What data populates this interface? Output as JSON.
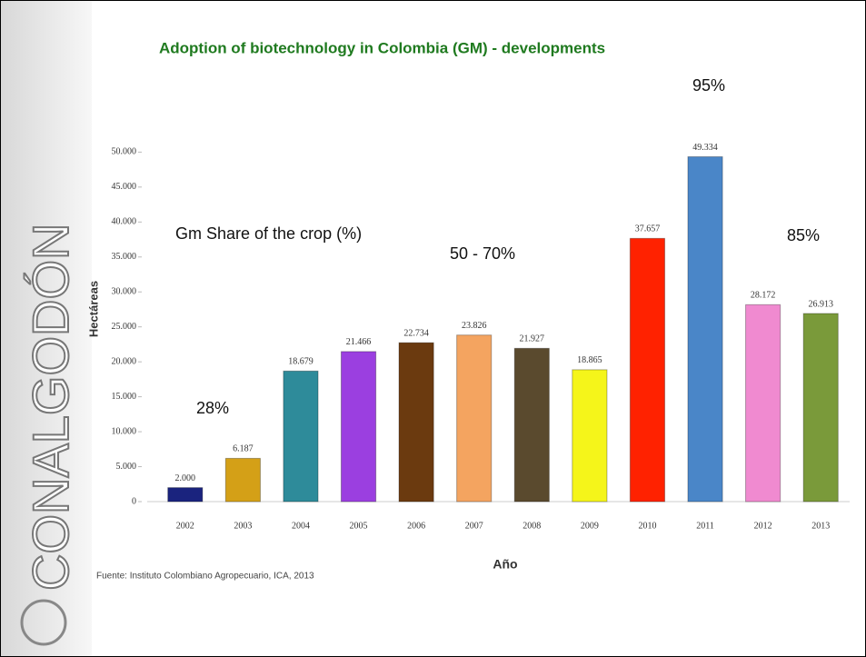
{
  "brand": "CONALGODÓN",
  "chart_data": {
    "type": "bar",
    "title": "Adoption of biotechnology in Colombia (GM) - developments",
    "y_label": "Hectáreas",
    "x_label": "Año",
    "source": "Fuente: Instituto Colombiano Agropecuario, ICA, 2013",
    "annotations": [
      "Gm Share of the crop (%)",
      "28%",
      "50 - 70%",
      "95%",
      "85%"
    ],
    "categories": [
      "2002",
      "2003",
      "2004",
      "2005",
      "2006",
      "2007",
      "2008",
      "2009",
      "2010",
      "2011",
      "2012",
      "2013"
    ],
    "values": [
      2000,
      6187,
      18679,
      21466,
      22734,
      23826,
      21927,
      18865,
      37657,
      49334,
      28172,
      26913
    ],
    "value_labels": [
      "2.000",
      "6.187",
      "18.679",
      "21.466",
      "22.734",
      "23.826",
      "21.927",
      "18.865",
      "37.657",
      "49.334",
      "28.172",
      "26.913"
    ],
    "colors": [
      "#1a237e",
      "#d4a017",
      "#2e8b9a",
      "#9b3fe0",
      "#6b3a0f",
      "#f4a460",
      "#5a4a2e",
      "#f5f51a",
      "#ff2200",
      "#4a86c8",
      "#f08ad0",
      "#7a9a3a"
    ],
    "ylim": [
      0,
      52000
    ],
    "yticks": [
      0,
      {
        "value": 5000,
        "label": "5.000"
      },
      {
        "value": 10000,
        "label": "10.000"
      },
      {
        "value": 15000,
        "label": "15.000"
      },
      {
        "value": 20000,
        "label": "20.000"
      },
      {
        "value": 25000,
        "label": "25.000"
      },
      {
        "value": 30000,
        "label": "30.000"
      },
      {
        "value": 35000,
        "label": "35.000"
      },
      {
        "value": 40000,
        "label": "40.000"
      },
      {
        "value": 45000,
        "label": "45.000"
      },
      {
        "value": 50000,
        "label": "50.000"
      }
    ],
    "grid": false
  }
}
